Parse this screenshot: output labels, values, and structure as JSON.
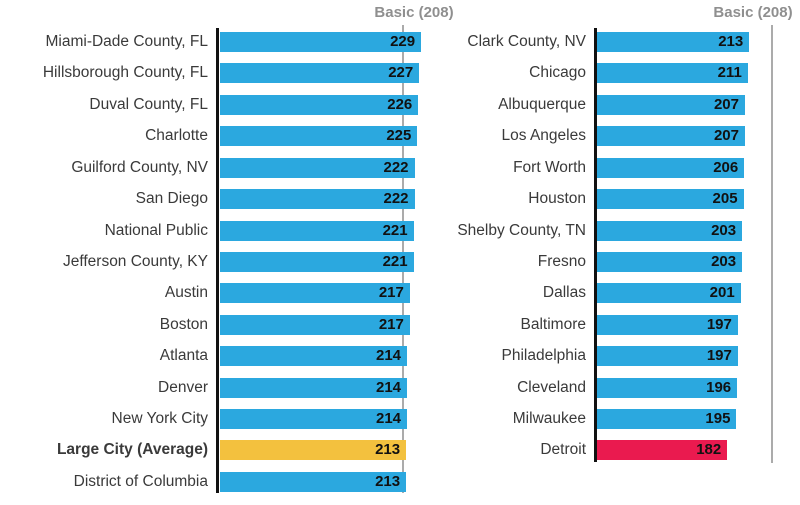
{
  "chart_data": {
    "type": "bar",
    "orientation": "horizontal",
    "title": "",
    "benchmark": {
      "label": "Basic (208)",
      "value": 208
    },
    "colors": {
      "bar_default": "#2BA8DF",
      "bar_average": "#F3C13E",
      "bar_low": "#EA1A4F",
      "benchmark_line": "#ABABAB",
      "benchmark_text": "#8F8F8F",
      "axis": "#111111",
      "label_text": "#3A3A3A",
      "value_text": "#111111",
      "background": "#FFFFFF"
    },
    "columns": [
      {
        "name": "left",
        "rows": [
          {
            "label": "Miami-Dade County, FL",
            "value": 229,
            "emphasis": "default"
          },
          {
            "label": "Hillsborough County, FL",
            "value": 227,
            "emphasis": "default"
          },
          {
            "label": "Duval County, FL",
            "value": 226,
            "emphasis": "default"
          },
          {
            "label": "Charlotte",
            "value": 225,
            "emphasis": "default"
          },
          {
            "label": "Guilford County, NV",
            "value": 222,
            "emphasis": "default"
          },
          {
            "label": "San Diego",
            "value": 222,
            "emphasis": "default"
          },
          {
            "label": "National Public",
            "value": 221,
            "emphasis": "default"
          },
          {
            "label": "Jefferson County, KY",
            "value": 221,
            "emphasis": "default"
          },
          {
            "label": "Austin",
            "value": 217,
            "emphasis": "default"
          },
          {
            "label": "Boston",
            "value": 217,
            "emphasis": "default"
          },
          {
            "label": "Atlanta",
            "value": 214,
            "emphasis": "default"
          },
          {
            "label": "Denver",
            "value": 214,
            "emphasis": "default"
          },
          {
            "label": "New York City",
            "value": 214,
            "emphasis": "default"
          },
          {
            "label": "Large City (Average)",
            "value": 213,
            "emphasis": "average"
          },
          {
            "label": "District of Columbia",
            "value": 213,
            "emphasis": "default"
          }
        ]
      },
      {
        "name": "right",
        "rows": [
          {
            "label": "Clark County, NV",
            "value": 213,
            "emphasis": "default"
          },
          {
            "label": "Chicago",
            "value": 211,
            "emphasis": "default"
          },
          {
            "label": "Albuquerque",
            "value": 207,
            "emphasis": "default"
          },
          {
            "label": "Los Angeles",
            "value": 207,
            "emphasis": "default"
          },
          {
            "label": "Fort Worth",
            "value": 206,
            "emphasis": "default"
          },
          {
            "label": "Houston",
            "value": 205,
            "emphasis": "default"
          },
          {
            "label": "Shelby County, TN",
            "value": 203,
            "emphasis": "default"
          },
          {
            "label": "Fresno",
            "value": 203,
            "emphasis": "default"
          },
          {
            "label": "Dallas",
            "value": 201,
            "emphasis": "default"
          },
          {
            "label": "Baltimore",
            "value": 197,
            "emphasis": "default"
          },
          {
            "label": "Philadelphia",
            "value": 197,
            "emphasis": "default"
          },
          {
            "label": "Cleveland",
            "value": 196,
            "emphasis": "default"
          },
          {
            "label": "Milwaukee",
            "value": 195,
            "emphasis": "default"
          },
          {
            "label": "Detroit",
            "value": 182,
            "emphasis": "low"
          }
        ]
      }
    ]
  }
}
